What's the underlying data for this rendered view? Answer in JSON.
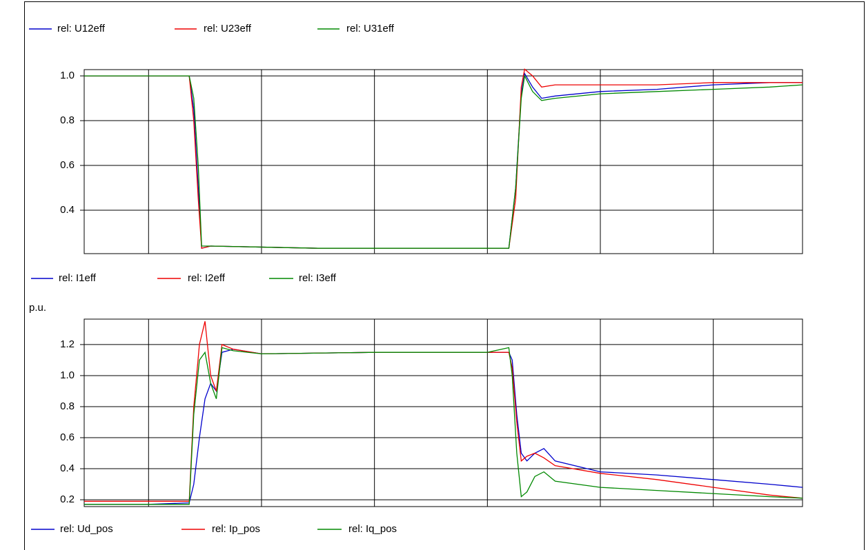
{
  "chart_data": [
    {
      "type": "line",
      "x": [
        0.43,
        1.0,
        1.36,
        1.4,
        1.44,
        1.47,
        1.55,
        2.5,
        3.5,
        4.19,
        4.25,
        4.3,
        4.33,
        4.4,
        4.48,
        4.6,
        5.0,
        5.5,
        6.0,
        6.5,
        6.79
      ],
      "xlim": [
        0.43,
        6.79
      ],
      "xticks": [
        1,
        2,
        3,
        4,
        5,
        6
      ],
      "ylim": [
        0.206,
        1.028
      ],
      "yticks": [
        {
          "value": 1.0,
          "label": "1.0"
        },
        0.8,
        0.6,
        0.4
      ],
      "grid": true,
      "series": [
        {
          "name": "rel: U12eff",
          "color": "#0000cc",
          "values": [
            1.0,
            1.0,
            1.0,
            0.85,
            0.5,
            0.23,
            0.24,
            0.23,
            0.23,
            0.23,
            0.5,
            0.92,
            1.01,
            0.95,
            0.9,
            0.91,
            0.93,
            0.94,
            0.96,
            0.97,
            0.97
          ]
        },
        {
          "name": "rel: U23eff",
          "color": "#ee0000",
          "values": [
            1.0,
            1.0,
            1.0,
            0.8,
            0.45,
            0.23,
            0.24,
            0.23,
            0.23,
            0.23,
            0.45,
            0.95,
            1.03,
            1.0,
            0.95,
            0.96,
            0.96,
            0.96,
            0.97,
            0.97,
            0.97
          ]
        },
        {
          "name": "rel: U31eff",
          "color": "#008800",
          "values": [
            1.0,
            1.0,
            1.0,
            0.9,
            0.6,
            0.24,
            0.24,
            0.23,
            0.23,
            0.23,
            0.5,
            0.9,
            1.0,
            0.93,
            0.89,
            0.9,
            0.92,
            0.93,
            0.94,
            0.95,
            0.96
          ]
        }
      ]
    },
    {
      "type": "line",
      "y_label": "p.u.",
      "x": [
        0.43,
        1.0,
        1.36,
        1.4,
        1.45,
        1.5,
        1.55,
        1.6,
        1.65,
        1.75,
        2.0,
        3.0,
        4.0,
        4.19,
        4.22,
        4.26,
        4.3,
        4.35,
        4.42,
        4.5,
        4.6,
        5.0,
        5.5,
        6.0,
        6.5,
        6.79
      ],
      "xlim": [
        0.43,
        6.79
      ],
      "xticks": [
        1,
        2,
        3,
        4,
        5,
        6
      ],
      "ylim": [
        0.156,
        1.364
      ],
      "yticks": [
        1.2,
        {
          "value": 1.0,
          "label": "1.0"
        },
        0.8,
        0.6,
        0.4,
        0.2
      ],
      "grid": true,
      "series": [
        {
          "name": "rel: I1eff",
          "color": "#0000cc",
          "values": [
            0.17,
            0.17,
            0.18,
            0.3,
            0.6,
            0.85,
            0.95,
            0.9,
            1.15,
            1.17,
            1.14,
            1.15,
            1.15,
            1.15,
            1.1,
            0.75,
            0.5,
            0.45,
            0.5,
            0.53,
            0.45,
            0.38,
            0.36,
            0.33,
            0.3,
            0.28
          ]
        },
        {
          "name": "rel: I2eff",
          "color": "#ee0000",
          "values": [
            0.19,
            0.19,
            0.19,
            0.8,
            1.2,
            1.35,
            1.0,
            0.9,
            1.2,
            1.17,
            1.14,
            1.15,
            1.15,
            1.15,
            1.05,
            0.7,
            0.45,
            0.48,
            0.5,
            0.47,
            0.42,
            0.37,
            0.33,
            0.28,
            0.23,
            0.21
          ]
        },
        {
          "name": "rel: I3eff",
          "color": "#008800",
          "values": [
            0.17,
            0.17,
            0.17,
            0.75,
            1.1,
            1.15,
            0.95,
            0.85,
            1.18,
            1.16,
            1.14,
            1.15,
            1.15,
            1.18,
            1.0,
            0.5,
            0.22,
            0.25,
            0.35,
            0.38,
            0.32,
            0.28,
            0.26,
            0.24,
            0.22,
            0.21
          ]
        }
      ]
    },
    {
      "type": "legend",
      "series": [
        {
          "name": "rel: Ud_pos",
          "color": "#0000cc"
        },
        {
          "name": "rel: Ip_pos",
          "color": "#ee0000"
        },
        {
          "name": "rel: Iq_pos",
          "color": "#008800"
        }
      ]
    }
  ]
}
